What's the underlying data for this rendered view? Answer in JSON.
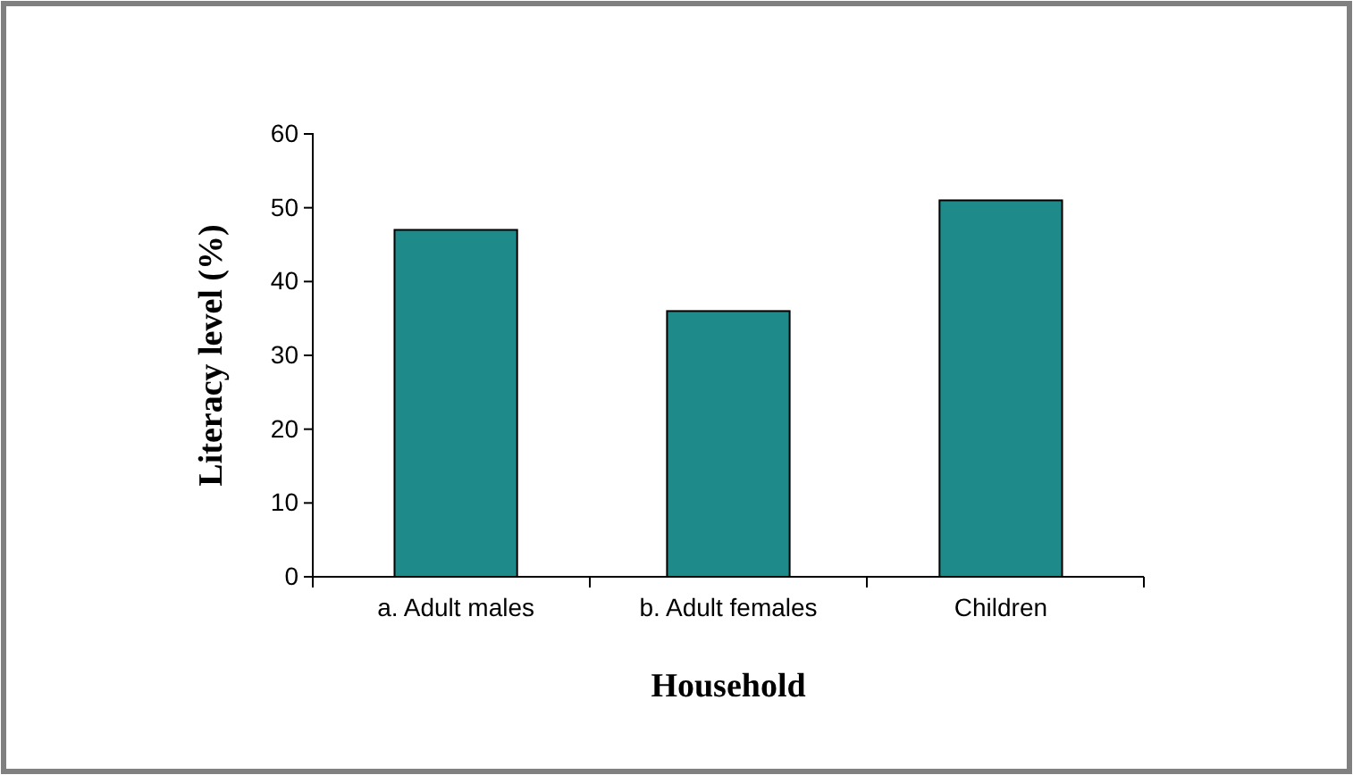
{
  "chart_data": {
    "type": "bar",
    "xlabel": "Household",
    "ylabel": "Literacy level (%)",
    "categories": [
      "a. Adult males",
      "b. Adult females",
      "Children"
    ],
    "values": [
      47,
      36,
      51
    ],
    "color": "#1f8a8a",
    "ylim": [
      0,
      60
    ],
    "yticks": [
      0,
      10,
      20,
      30,
      40,
      50,
      60
    ],
    "grid": false
  }
}
